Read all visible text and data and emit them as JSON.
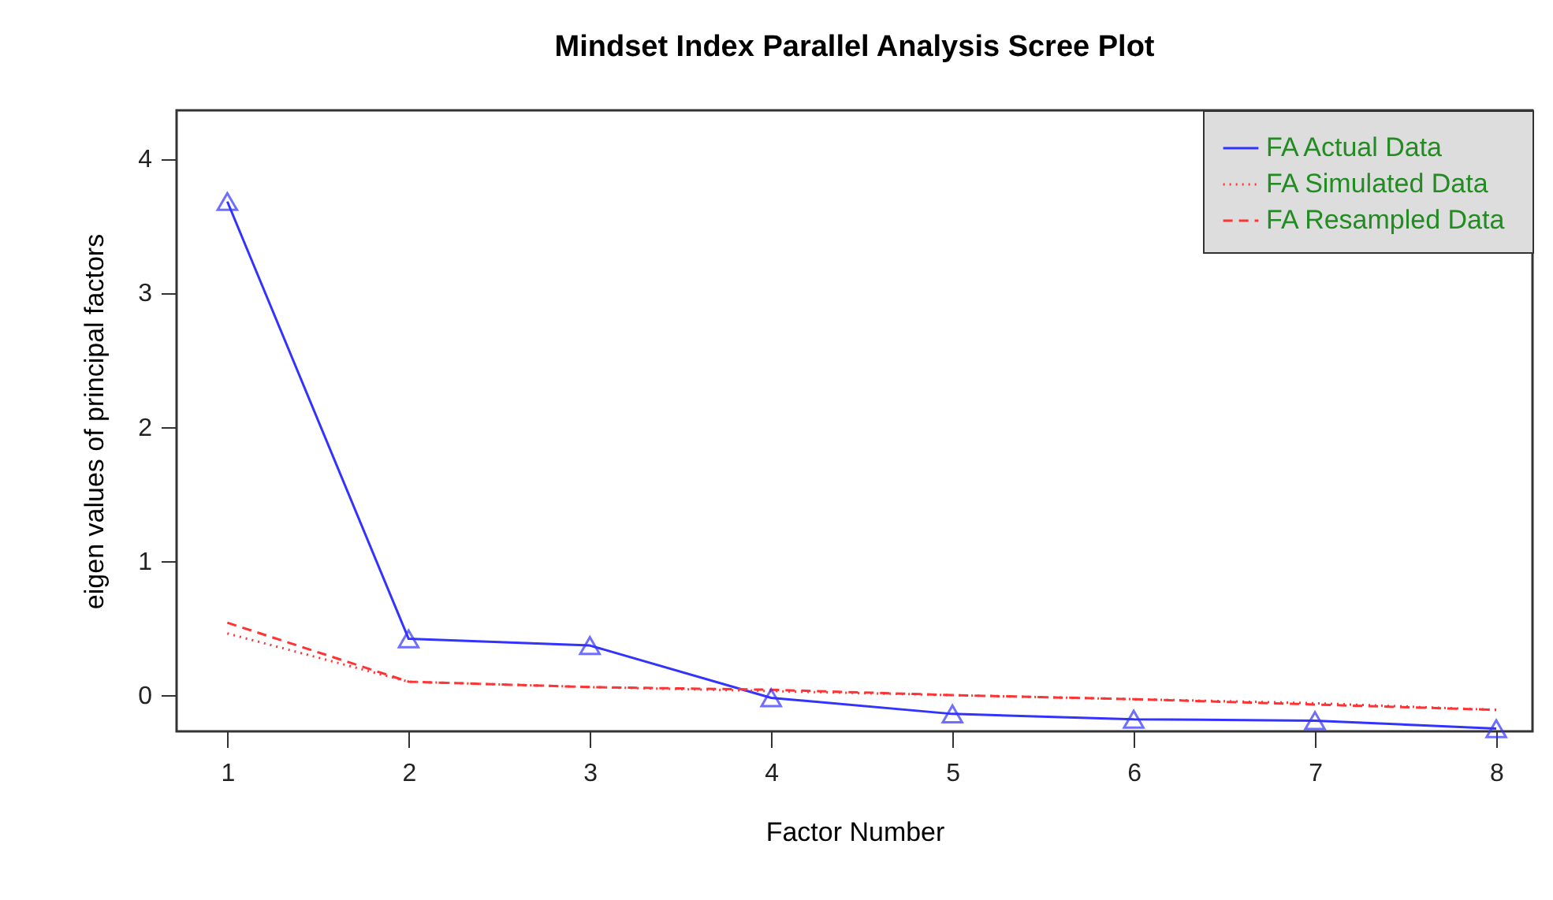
{
  "chart_data": {
    "type": "line",
    "title": "Mindset Index Parallel Analysis Scree Plot",
    "xlabel": "Factor Number",
    "ylabel": "eigen values of principal factors",
    "x": [
      1,
      2,
      3,
      4,
      5,
      6,
      7,
      8
    ],
    "series": [
      {
        "name": "FA  Actual Data",
        "color": "#3333ff",
        "line_style": "solid",
        "marker": "triangle",
        "values": [
          3.68,
          0.42,
          0.37,
          -0.02,
          -0.14,
          -0.18,
          -0.19,
          -0.25
        ]
      },
      {
        "name": "FA  Simulated Data",
        "color": "#ff3333",
        "line_style": "dotted",
        "marker": "none",
        "values": [
          0.46,
          0.1,
          0.06,
          0.03,
          0.0,
          -0.03,
          -0.06,
          -0.11
        ]
      },
      {
        "name": "FA  Resampled Data",
        "color": "#ff3333",
        "line_style": "dashed",
        "marker": "none",
        "values": [
          0.54,
          0.1,
          0.06,
          0.04,
          0.0,
          -0.03,
          -0.07,
          -0.11
        ]
      }
    ],
    "xlim": [
      0.72,
      8.2
    ],
    "ylim": [
      -0.27,
      4.36
    ],
    "xticks": [
      1,
      2,
      3,
      4,
      5,
      6,
      7,
      8
    ],
    "yticks": [
      0,
      1,
      2,
      3,
      4
    ],
    "grid": false,
    "legend": "top right"
  }
}
